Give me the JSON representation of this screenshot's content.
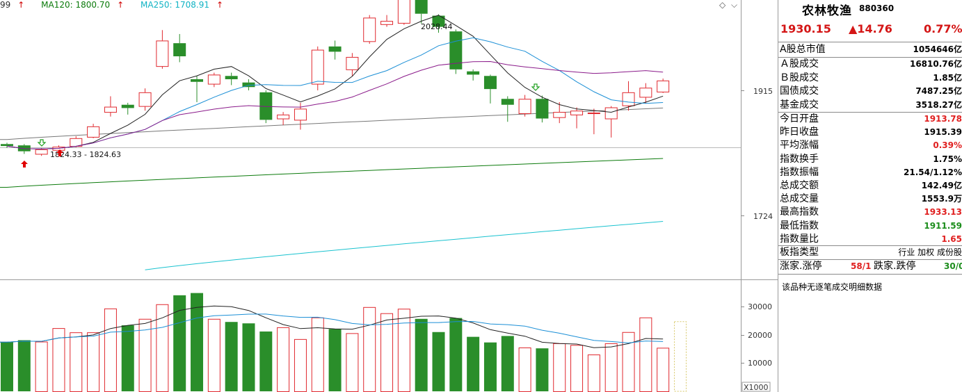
{
  "top_bar": {
    "ma_prefix": "99",
    "ma120_label": "MA120: 1800.70",
    "ma250_label": "MA250: 1708.91",
    "arrow": "↑",
    "icons": [
      "diamond-icon",
      "chevron-down-icon"
    ]
  },
  "chart_annotations": {
    "high_label": "2028.44",
    "low_label": "1824.33 - 1824.63"
  },
  "price_axis": {
    "labels": [
      "1915",
      "1724"
    ]
  },
  "volume_axis": {
    "labels": [
      "30000",
      "20000",
      "10000"
    ],
    "unit": "X1000"
  },
  "panel": {
    "name": "农林牧渔",
    "code": "880360",
    "price": "1930.15",
    "change": "▲14.76",
    "change_pct": "0.77%",
    "market_cap": {
      "label": "A股总市值",
      "value": "1054646亿"
    },
    "turnover": [
      {
        "label": "Ａ股成交",
        "value": "16810.76亿"
      },
      {
        "label": "Ｂ股成交",
        "value": "1.85亿"
      },
      {
        "label": "国债成交",
        "value": "7487.25亿"
      },
      {
        "label": "基金成交",
        "value": "3518.27亿"
      }
    ],
    "stats": [
      {
        "label": "今日开盘",
        "value": "1913.78",
        "color": "red"
      },
      {
        "label": "昨日收盘",
        "value": "1915.39",
        "color": "black"
      },
      {
        "label": "平均涨幅",
        "value": "0.39%",
        "color": "red"
      },
      {
        "label": "指数换手",
        "value": "1.75%",
        "color": "black"
      },
      {
        "label": "指数振幅",
        "value": "21.54/1.12%",
        "color": "black"
      },
      {
        "label": "总成交额",
        "value": "142.49亿",
        "color": "black"
      },
      {
        "label": "总成交量",
        "value": "1553.9万",
        "color": "black"
      },
      {
        "label": "最高指数",
        "value": "1933.13",
        "color": "red"
      },
      {
        "label": "最低指数",
        "value": "1911.59",
        "color": "green"
      },
      {
        "label": "指数量比",
        "value": "1.65",
        "color": "red"
      }
    ],
    "board_type": {
      "label": "板指类型",
      "value": "行业 加权 成份股"
    },
    "limits": {
      "up_label": "涨家.涨停",
      "up_value": "58/1",
      "down_label": "跌家.跌停",
      "down_value": "30/0"
    },
    "notice": "该品种无逐笔成交明细数据"
  },
  "chart_data": {
    "type": "candlestick",
    "candles": [
      {
        "o": 1833,
        "c": 1830,
        "h": 1835,
        "l": 1827
      },
      {
        "o": 1831,
        "c": 1822,
        "h": 1833,
        "l": 1818
      },
      {
        "o": 1818,
        "c": 1825,
        "h": 1827,
        "l": 1815
      },
      {
        "o": 1824,
        "c": 1829,
        "h": 1831,
        "l": 1822
      },
      {
        "o": 1830,
        "c": 1842,
        "h": 1845,
        "l": 1828
      },
      {
        "o": 1844,
        "c": 1860,
        "h": 1864,
        "l": 1842
      },
      {
        "o": 1882,
        "c": 1890,
        "h": 1906,
        "l": 1875
      },
      {
        "o": 1893,
        "c": 1888,
        "h": 1896,
        "l": 1878
      },
      {
        "o": 1891,
        "c": 1912,
        "h": 1918,
        "l": 1884
      },
      {
        "o": 1952,
        "c": 1991,
        "h": 2007,
        "l": 1948
      },
      {
        "o": 1987,
        "c": 1967,
        "h": 2001,
        "l": 1958
      },
      {
        "o": 1932,
        "c": 1928,
        "h": 1937,
        "l": 1897
      },
      {
        "o": 1925,
        "c": 1939,
        "h": 1942,
        "l": 1920
      },
      {
        "o": 1937,
        "c": 1932,
        "h": 1942,
        "l": 1923
      },
      {
        "o": 1927,
        "c": 1920,
        "h": 1932,
        "l": 1915
      },
      {
        "o": 1912,
        "c": 1870,
        "h": 1915,
        "l": 1865
      },
      {
        "o": 1872,
        "c": 1878,
        "h": 1882,
        "l": 1862
      },
      {
        "o": 1870,
        "c": 1887,
        "h": 1896,
        "l": 1855
      },
      {
        "o": 1925,
        "c": 1977,
        "h": 1982,
        "l": 1915
      },
      {
        "o": 1982,
        "c": 1974,
        "h": 1991,
        "l": 1962
      },
      {
        "o": 1947,
        "c": 1966,
        "h": 1972,
        "l": 1937
      },
      {
        "o": 1990,
        "c": 2026,
        "h": 2030,
        "l": 1986
      },
      {
        "o": 2016,
        "c": 2021,
        "h": 2030,
        "l": 2012
      },
      {
        "o": 2018,
        "c": 2058,
        "h": 2060,
        "l": 2015
      },
      {
        "o": 2058,
        "c": 2032,
        "h": 2063,
        "l": 2017
      },
      {
        "o": 2029,
        "c": 2012,
        "h": 2031,
        "l": 2003
      },
      {
        "o": 2005,
        "c": 1947,
        "h": 2008,
        "l": 1940
      },
      {
        "o": 1944,
        "c": 1939,
        "h": 1947,
        "l": 1930
      },
      {
        "o": 1937,
        "c": 1917,
        "h": 1939,
        "l": 1895
      },
      {
        "o": 1902,
        "c": 1893,
        "h": 1906,
        "l": 1867
      },
      {
        "o": 1880,
        "c": 1902,
        "h": 1908,
        "l": 1875
      },
      {
        "o": 1902,
        "c": 1872,
        "h": 1907,
        "l": 1866
      },
      {
        "o": 1874,
        "c": 1882,
        "h": 1897,
        "l": 1865
      },
      {
        "o": 1878,
        "c": 1884,
        "h": 1889,
        "l": 1857
      },
      {
        "o": 1880,
        "c": 1881,
        "h": 1887,
        "l": 1848
      },
      {
        "o": 1872,
        "c": 1889,
        "h": 1891,
        "l": 1843
      },
      {
        "o": 1892,
        "c": 1912,
        "h": 1929,
        "l": 1884
      },
      {
        "o": 1905,
        "c": 1919,
        "h": 1926,
        "l": 1895
      },
      {
        "o": 1913,
        "c": 1930,
        "h": 1933,
        "l": 1911
      }
    ],
    "volume": [
      17500,
      18200,
      17700,
      22500,
      21000,
      21000,
      29500,
      23500,
      25800,
      31000,
      34200,
      35000,
      25800,
      24700,
      24200,
      21300,
      22800,
      18600,
      26300,
      22200,
      20700,
      30000,
      27800,
      29400,
      25800,
      21100,
      26100,
      19400,
      17400,
      19700,
      15600,
      15300,
      17100,
      16500,
      13100,
      17100,
      21100,
      26300,
      15500
    ],
    "ma_labels": [
      "MA120: 1800.70",
      "MA250: 1708.91"
    ],
    "price_ticks": [
      1915,
      1724
    ],
    "volume_ticks": [
      30000,
      20000,
      10000
    ],
    "annotations": [
      {
        "text": "2028.44"
      },
      {
        "text": "1824.33 - 1824.63"
      }
    ]
  }
}
